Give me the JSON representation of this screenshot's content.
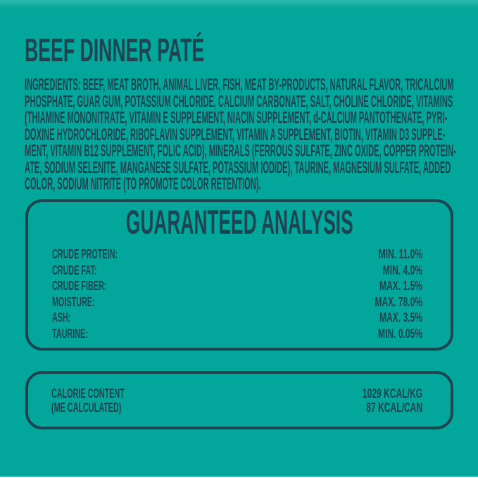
{
  "colors": {
    "background": "#03a69a",
    "ink": "#1b4551"
  },
  "product": {
    "title": "BEEF DINNER PATÉ"
  },
  "ingredients": {
    "lines": [
      "INGREDIENTS: BEEF, MEAT BROTH, ANIMAL LIVER, FISH, MEAT BY-PRODUCTS, NATURAL FLAVOR, TRICALCIUM",
      "PHOSPHATE, GUAR GUM, POTASSIUM CHLORIDE, CALCIUM CARBONATE, SALT, CHOLINE CHLORIDE, VITAMINS",
      "(THIAMINE MONONITRATE, VITAMIN E SUPPLEMENT, NIACIN SUPPLEMENT, d-CALCIUM PANTOTHENATE, PYRI-",
      "DOXINE HYDROCHLORIDE, RIBOFLAVIN SUPPLEMENT, VITAMIN A SUPPLEMENT, BIOTIN, VITAMIN D3 SUPPLE-",
      "MENT, VITAMIN B12 SUPPLEMENT, FOLIC ACID), MINERALS (FERROUS SULFATE, ZINC OXIDE, COPPER PROTEIN-",
      "ATE, SODIUM SELENITE, MANGANESE SULFATE, POTASSIUM IODIDE), TAURINE, MAGNESIUM SULFATE, ADDED",
      "COLOR, SODIUM NITRITE (TO PROMOTE COLOR RETENTION)."
    ]
  },
  "guaranteed_analysis": {
    "title": "GUARANTEED ANALYSIS",
    "rows": [
      {
        "label": "CRUDE PROTEIN:",
        "value": "MIN. 11.0%"
      },
      {
        "label": "CRUDE FAT:",
        "value": "MIN. 4.0%"
      },
      {
        "label": "CRUDE FIBER:",
        "value": "MAX. 1.5%"
      },
      {
        "label": "MOISTURE:",
        "value": "MAX. 78.0%"
      },
      {
        "label": "ASH:",
        "value": "MAX. 3.5%"
      },
      {
        "label": "TAURINE:",
        "value": "MIN. 0.05%"
      }
    ]
  },
  "calorie_content": {
    "label_line1": "CALORIE CONTENT",
    "label_line2": "(ME CALCULATED)",
    "value_line1": "1029 KCAL/KG",
    "value_line2": "87 KCAL/CAN"
  }
}
